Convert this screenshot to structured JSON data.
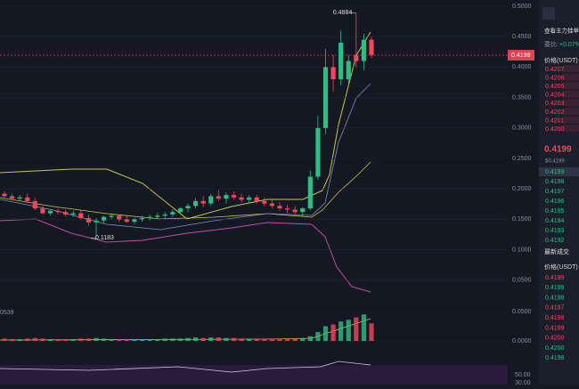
{
  "price_chart": {
    "yticks": [
      {
        "value": 0.5,
        "label": "0.5000"
      },
      {
        "value": 0.45,
        "label": "0.4500"
      },
      {
        "value": 0.4,
        "label": "0.4000"
      },
      {
        "value": 0.35,
        "label": "0.3500"
      },
      {
        "value": 0.3,
        "label": "0.3000"
      },
      {
        "value": 0.25,
        "label": "0.2500"
      },
      {
        "value": 0.2,
        "label": "0.2000"
      },
      {
        "value": 0.15,
        "label": "0.1500"
      },
      {
        "value": 0.1,
        "label": "0.1000"
      },
      {
        "value": 0.05,
        "label": "0.0500"
      }
    ],
    "ylim": [
      0.0,
      0.5
    ],
    "candles": [
      [
        0.192,
        0.196,
        0.186,
        0.188
      ],
      [
        0.188,
        0.192,
        0.182,
        0.184
      ],
      [
        0.184,
        0.19,
        0.18,
        0.186
      ],
      [
        0.186,
        0.192,
        0.178,
        0.18
      ],
      [
        0.18,
        0.185,
        0.165,
        0.168
      ],
      [
        0.168,
        0.172,
        0.158,
        0.16
      ],
      [
        0.16,
        0.166,
        0.156,
        0.164
      ],
      [
        0.164,
        0.168,
        0.158,
        0.162
      ],
      [
        0.162,
        0.166,
        0.155,
        0.158
      ],
      [
        0.158,
        0.164,
        0.154,
        0.16
      ],
      [
        0.16,
        0.165,
        0.15,
        0.152
      ],
      [
        0.152,
        0.158,
        0.14,
        0.145
      ],
      [
        0.145,
        0.152,
        0.1183,
        0.148
      ],
      [
        0.148,
        0.156,
        0.144,
        0.154
      ],
      [
        0.154,
        0.16,
        0.15,
        0.156
      ],
      [
        0.156,
        0.158,
        0.146,
        0.15
      ],
      [
        0.15,
        0.156,
        0.144,
        0.146
      ],
      [
        0.146,
        0.152,
        0.142,
        0.15
      ],
      [
        0.15,
        0.156,
        0.146,
        0.152
      ],
      [
        0.152,
        0.158,
        0.148,
        0.154
      ],
      [
        0.154,
        0.16,
        0.15,
        0.156
      ],
      [
        0.156,
        0.162,
        0.15,
        0.158
      ],
      [
        0.158,
        0.166,
        0.154,
        0.162
      ],
      [
        0.162,
        0.17,
        0.158,
        0.168
      ],
      [
        0.168,
        0.176,
        0.162,
        0.172
      ],
      [
        0.172,
        0.185,
        0.168,
        0.18
      ],
      [
        0.18,
        0.188,
        0.17,
        0.176
      ],
      [
        0.176,
        0.192,
        0.172,
        0.188
      ],
      [
        0.188,
        0.198,
        0.18,
        0.184
      ],
      [
        0.184,
        0.194,
        0.176,
        0.19
      ],
      [
        0.19,
        0.196,
        0.182,
        0.186
      ],
      [
        0.186,
        0.192,
        0.178,
        0.182
      ],
      [
        0.182,
        0.19,
        0.176,
        0.186
      ],
      [
        0.186,
        0.19,
        0.176,
        0.18
      ],
      [
        0.18,
        0.186,
        0.172,
        0.176
      ],
      [
        0.176,
        0.182,
        0.168,
        0.172
      ],
      [
        0.172,
        0.178,
        0.164,
        0.168
      ],
      [
        0.168,
        0.174,
        0.16,
        0.166
      ],
      [
        0.166,
        0.172,
        0.158,
        0.162
      ],
      [
        0.162,
        0.17,
        0.155,
        0.168
      ],
      [
        0.168,
        0.23,
        0.165,
        0.22
      ],
      [
        0.22,
        0.32,
        0.215,
        0.3
      ],
      [
        0.3,
        0.43,
        0.29,
        0.4
      ],
      [
        0.4,
        0.42,
        0.36,
        0.38
      ],
      [
        0.38,
        0.46,
        0.37,
        0.44
      ],
      [
        0.38,
        0.42,
        0.37,
        0.41
      ],
      [
        0.42,
        0.4884,
        0.4,
        0.41
      ],
      [
        0.41,
        0.455,
        0.395,
        0.445
      ],
      [
        0.445,
        0.45,
        0.415,
        0.4199
      ]
    ],
    "high_label": "0.4884",
    "low_label": "0.1183",
    "last_price": "0.4199",
    "volume_ticks": [
      {
        "value": 0.05,
        "label": "0.0500"
      },
      {
        "value": 0,
        "label": "0.0000"
      }
    ],
    "volume": [
      0.004,
      0.003,
      0.003,
      0.004,
      0.005,
      0.004,
      0.003,
      0.003,
      0.003,
      0.003,
      0.004,
      0.004,
      0.005,
      0.004,
      0.003,
      0.003,
      0.003,
      0.003,
      0.003,
      0.003,
      0.003,
      0.004,
      0.004,
      0.004,
      0.005,
      0.006,
      0.005,
      0.006,
      0.006,
      0.005,
      0.005,
      0.004,
      0.004,
      0.004,
      0.004,
      0.004,
      0.004,
      0.004,
      0.004,
      0.004,
      0.008,
      0.015,
      0.025,
      0.028,
      0.033,
      0.036,
      0.04,
      0.045,
      0.03
    ],
    "volume_note": "0539",
    "osc_labels": [
      "50.00",
      "30.00"
    ]
  },
  "panel": {
    "toggle": "查看主力挂单",
    "ratio_label": "委比:",
    "ratio": "+0.07%",
    "price_header": "价格(USDT)",
    "asks": [
      "0.4207",
      "0.4206",
      "0.4205",
      "0.4204",
      "0.4203",
      "0.4202",
      "0.4201",
      "0.4200"
    ],
    "last": "0.4199",
    "last_usd": "$0.4199",
    "bids": [
      "0.4199",
      "0.4198",
      "0.4197",
      "0.4196",
      "0.4195",
      "0.4194",
      "0.4193",
      "0.4192"
    ],
    "trades_title": "最新成交",
    "trades_header": "价格(USDT)",
    "trades": [
      {
        "p": "0.4199",
        "side": "sell"
      },
      {
        "p": "0.4199",
        "side": "buy"
      },
      {
        "p": "0.4198",
        "side": "buy"
      },
      {
        "p": "0.4197",
        "side": "sell"
      },
      {
        "p": "0.4198",
        "side": "sell"
      },
      {
        "p": "0.4199",
        "side": "sell"
      },
      {
        "p": "0.4200",
        "side": "sell"
      },
      {
        "p": "0.4200",
        "side": "buy"
      },
      {
        "p": "0.4198",
        "side": "buy"
      }
    ]
  }
}
